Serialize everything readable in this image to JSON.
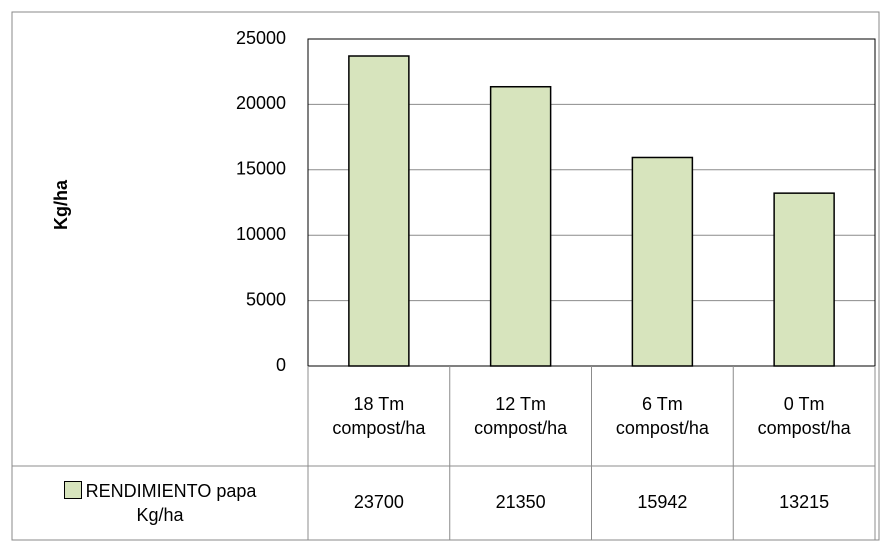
{
  "chart_data": {
    "type": "bar",
    "y_axis_label": "Kg/ha",
    "categories": [
      "18 Tm compost/ha",
      "12 Tm compost/ha",
      "6 Tm compost/ha",
      "0 Tm compost/ha"
    ],
    "series": [
      {
        "name": "RENDIMIENTO papa Kg/ha",
        "color": "#d7e4bd",
        "values": [
          23700,
          21350,
          15942,
          13215
        ]
      }
    ],
    "ylim": [
      0,
      25000
    ],
    "yticks": [
      0,
      5000,
      10000,
      15000,
      20000,
      25000
    ],
    "grid": true,
    "legend": "data-table"
  }
}
